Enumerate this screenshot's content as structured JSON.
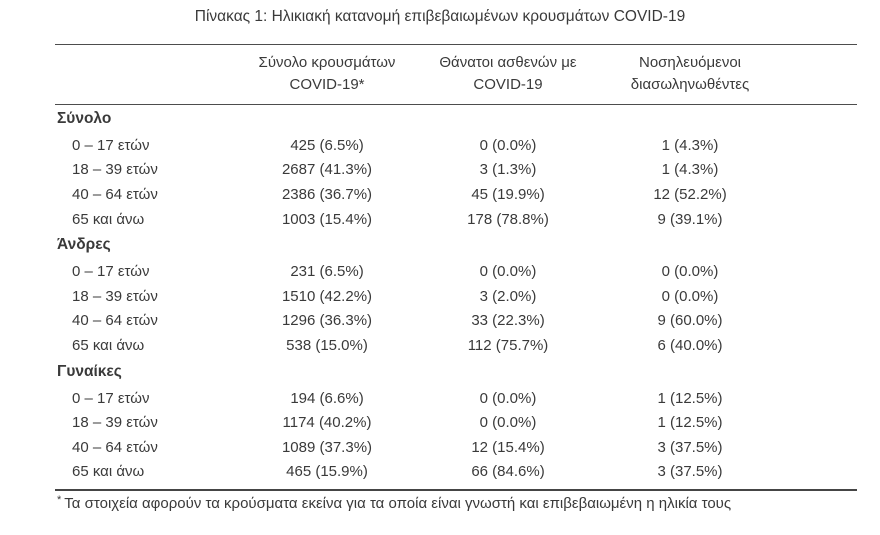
{
  "title": "Πίνακας 1: Ηλικιακή κατανομή επιβεβαιωμένων κρουσμάτων COVID-19",
  "table": {
    "columns": [
      {
        "line1": "Σύνολο κρουσμάτων",
        "line2": "COVID-19*"
      },
      {
        "line1": "Θάνατοι ασθενών με",
        "line2": "COVID-19"
      },
      {
        "line1": "Νοσηλευόμενοι",
        "line2": "διασωληνωθέντες"
      }
    ],
    "groups": [
      {
        "label": "Σύνολο",
        "rows": [
          {
            "label": "0 – 17 ετών",
            "cases": "425 (6.5%)",
            "deaths": "0 (0.0%)",
            "intubated": "1 (4.3%)"
          },
          {
            "label": "18 – 39 ετών",
            "cases": "2687 (41.3%)",
            "deaths": "3 (1.3%)",
            "intubated": "1 (4.3%)"
          },
          {
            "label": "40 – 64 ετών",
            "cases": "2386 (36.7%)",
            "deaths": "45 (19.9%)",
            "intubated": "12 (52.2%)"
          },
          {
            "label": "65 και άνω",
            "cases": "1003 (15.4%)",
            "deaths": "178 (78.8%)",
            "intubated": "9 (39.1%)"
          }
        ]
      },
      {
        "label": "Άνδρες",
        "rows": [
          {
            "label": "0 – 17 ετών",
            "cases": "231 (6.5%)",
            "deaths": "0 (0.0%)",
            "intubated": "0 (0.0%)"
          },
          {
            "label": "18 – 39 ετών",
            "cases": "1510 (42.2%)",
            "deaths": "3 (2.0%)",
            "intubated": "0 (0.0%)"
          },
          {
            "label": "40 – 64 ετών",
            "cases": "1296 (36.3%)",
            "deaths": "33 (22.3%)",
            "intubated": "9 (60.0%)"
          },
          {
            "label": "65 και άνω",
            "cases": "538 (15.0%)",
            "deaths": "112 (75.7%)",
            "intubated": "6 (40.0%)"
          }
        ]
      },
      {
        "label": "Γυναίκες",
        "rows": [
          {
            "label": "0 – 17 ετών",
            "cases": "194 (6.6%)",
            "deaths": "0 (0.0%)",
            "intubated": "1 (12.5%)"
          },
          {
            "label": "18 – 39 ετών",
            "cases": "1174 (40.2%)",
            "deaths": "0 (0.0%)",
            "intubated": "1 (12.5%)"
          },
          {
            "label": "40 – 64 ετών",
            "cases": "1089 (37.3%)",
            "deaths": "12 (15.4%)",
            "intubated": "3 (37.5%)"
          },
          {
            "label": "65 και άνω",
            "cases": "465 (15.9%)",
            "deaths": "66 (84.6%)",
            "intubated": "3 (37.5%)"
          }
        ]
      }
    ]
  },
  "footnote": {
    "marker": "*",
    "text": "Τα στοιχεία αφορούν τα κρούσματα εκείνα για τα οποία είναι γνωστή και επιβεβαιωμένη η ηλικία τους"
  },
  "colors": {
    "text": "#3a3a3a",
    "rule": "#4d4d4d",
    "background": "#ffffff"
  }
}
